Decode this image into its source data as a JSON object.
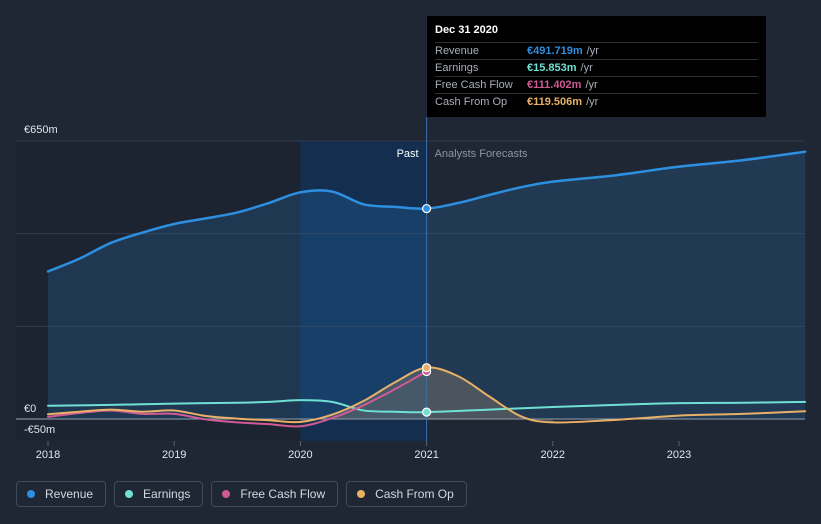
{
  "tooltip": {
    "date": "Dec 31 2020",
    "rows": [
      {
        "label": "Revenue",
        "value": "€491.719m",
        "unit": "/yr",
        "color": "#2d8fe0"
      },
      {
        "label": "Earnings",
        "value": "€15.853m",
        "unit": "/yr",
        "color": "#6fe1d4"
      },
      {
        "label": "Free Cash Flow",
        "value": "€111.402m",
        "unit": "/yr",
        "color": "#d05a95"
      },
      {
        "label": "Cash From Op",
        "value": "€119.506m",
        "unit": "/yr",
        "color": "#e9b168"
      }
    ]
  },
  "labels": {
    "past": "Past",
    "forecast": "Analysts Forecasts"
  },
  "legend": [
    {
      "label": "Revenue",
      "color": "#2d8fe0"
    },
    {
      "label": "Earnings",
      "color": "#6fe1d4"
    },
    {
      "label": "Free Cash Flow",
      "color": "#d05a95"
    },
    {
      "label": "Cash From Op",
      "color": "#e9b168"
    }
  ],
  "chart_data": {
    "type": "line",
    "ylim": [
      -50,
      650
    ],
    "y_tick_labels": [
      "€650m",
      "€0",
      "-€50m"
    ],
    "x_ticks": [
      2018,
      2019,
      2020,
      2021,
      2022,
      2023
    ],
    "x_range": [
      2017.78,
      2024
    ],
    "divider_x": 2021,
    "highlight_range": [
      2020,
      2021
    ],
    "grid": true,
    "series": [
      {
        "name": "Revenue",
        "color": "#2d8fe0",
        "width": 2.5,
        "area": true,
        "points": [
          [
            2018.0,
            345
          ],
          [
            2018.25,
            375
          ],
          [
            2018.5,
            412
          ],
          [
            2018.75,
            436
          ],
          [
            2019.0,
            456
          ],
          [
            2019.25,
            469
          ],
          [
            2019.5,
            483
          ],
          [
            2019.75,
            505
          ],
          [
            2020.0,
            530
          ],
          [
            2020.25,
            532
          ],
          [
            2020.5,
            502
          ],
          [
            2020.75,
            496
          ],
          [
            2021.0,
            492
          ],
          [
            2021.25,
            505
          ],
          [
            2021.5,
            524
          ],
          [
            2021.75,
            542
          ],
          [
            2022.0,
            555
          ],
          [
            2022.5,
            570
          ],
          [
            2023.0,
            590
          ],
          [
            2023.5,
            605
          ],
          [
            2024.0,
            625
          ]
        ]
      },
      {
        "name": "Earnings",
        "color": "#6fe1d4",
        "width": 2,
        "area": false,
        "points": [
          [
            2018.0,
            31
          ],
          [
            2018.5,
            33
          ],
          [
            2019.0,
            36
          ],
          [
            2019.5,
            38
          ],
          [
            2019.75,
            40
          ],
          [
            2020.0,
            44
          ],
          [
            2020.25,
            40
          ],
          [
            2020.5,
            20
          ],
          [
            2020.75,
            17
          ],
          [
            2021.0,
            16
          ],
          [
            2021.5,
            22
          ],
          [
            2022.0,
            28
          ],
          [
            2022.5,
            33
          ],
          [
            2023.0,
            37
          ],
          [
            2023.5,
            38
          ],
          [
            2024.0,
            40
          ]
        ]
      },
      {
        "name": "Free Cash Flow",
        "color": "#d05a95",
        "width": 2,
        "area": false,
        "points": [
          [
            2018.0,
            5
          ],
          [
            2018.25,
            14
          ],
          [
            2018.5,
            20
          ],
          [
            2018.75,
            12
          ],
          [
            2019.0,
            12
          ],
          [
            2019.25,
            -1
          ],
          [
            2019.5,
            -8
          ],
          [
            2019.75,
            -12
          ],
          [
            2020.0,
            -17
          ],
          [
            2020.25,
            2
          ],
          [
            2020.5,
            32
          ],
          [
            2020.75,
            70
          ],
          [
            2021.0,
            111
          ]
        ]
      },
      {
        "name": "Cash From Op",
        "color": "#e9b168",
        "width": 2,
        "area": false,
        "points": [
          [
            2018.0,
            11
          ],
          [
            2018.25,
            17
          ],
          [
            2018.5,
            22
          ],
          [
            2018.75,
            17
          ],
          [
            2019.0,
            20
          ],
          [
            2019.25,
            7
          ],
          [
            2019.5,
            1
          ],
          [
            2019.75,
            -3
          ],
          [
            2020.0,
            -7
          ],
          [
            2020.25,
            10
          ],
          [
            2020.5,
            42
          ],
          [
            2020.75,
            86
          ],
          [
            2021.0,
            120
          ],
          [
            2021.25,
            100
          ],
          [
            2021.5,
            52
          ],
          [
            2021.75,
            6
          ],
          [
            2022.0,
            -8
          ],
          [
            2022.5,
            -2
          ],
          [
            2023.0,
            8
          ],
          [
            2023.5,
            12
          ],
          [
            2024.0,
            18
          ]
        ]
      }
    ]
  }
}
